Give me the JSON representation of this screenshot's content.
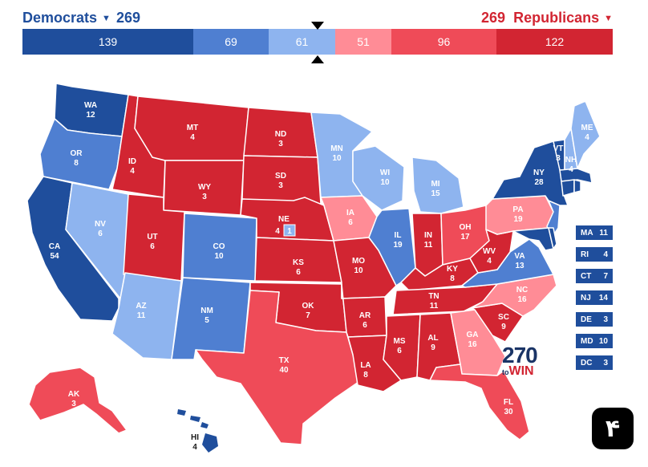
{
  "header": {
    "dem_label": "Democrats",
    "dem_total": "269",
    "rep_label": "Republicans",
    "rep_total": "269",
    "dropdown_icon": "chevron-down-icon"
  },
  "bar": {
    "segments": [
      {
        "value": "139",
        "color": "#1f4e9c"
      },
      {
        "value": "69",
        "color": "#4f7fd1"
      },
      {
        "value": "61",
        "color": "#8eb4ef"
      },
      {
        "value": "51",
        "color": "#ff8c96"
      },
      {
        "value": "96",
        "color": "#ef4b58"
      },
      {
        "value": "122",
        "color": "#d22532"
      }
    ]
  },
  "colors": {
    "solid_d": "#1f4e9c",
    "likely_d": "#4f7fd1",
    "lean_d": "#8eb4ef",
    "lean_r": "#ff8c96",
    "likely_r": "#ef4b58",
    "solid_r": "#d22532"
  },
  "states": {
    "WA": {
      "abbr": "WA",
      "ev": "12"
    },
    "OR": {
      "abbr": "OR",
      "ev": "8"
    },
    "CA": {
      "abbr": "CA",
      "ev": "54"
    },
    "NV": {
      "abbr": "NV",
      "ev": "6"
    },
    "ID": {
      "abbr": "ID",
      "ev": "4"
    },
    "MT": {
      "abbr": "MT",
      "ev": "4"
    },
    "WY": {
      "abbr": "WY",
      "ev": "3"
    },
    "UT": {
      "abbr": "UT",
      "ev": "6"
    },
    "AZ": {
      "abbr": "AZ",
      "ev": "11"
    },
    "CO": {
      "abbr": "CO",
      "ev": "10"
    },
    "NM": {
      "abbr": "NM",
      "ev": "5"
    },
    "ND": {
      "abbr": "ND",
      "ev": "3"
    },
    "SD": {
      "abbr": "SD",
      "ev": "3"
    },
    "NE": {
      "abbr": "NE",
      "ev": "4",
      "cd": "1"
    },
    "KS": {
      "abbr": "KS",
      "ev": "6"
    },
    "OK": {
      "abbr": "OK",
      "ev": "7"
    },
    "TX": {
      "abbr": "TX",
      "ev": "40"
    },
    "MN": {
      "abbr": "MN",
      "ev": "10"
    },
    "IA": {
      "abbr": "IA",
      "ev": "6"
    },
    "MO": {
      "abbr": "MO",
      "ev": "10"
    },
    "AR": {
      "abbr": "AR",
      "ev": "6"
    },
    "LA": {
      "abbr": "LA",
      "ev": "8"
    },
    "WI": {
      "abbr": "WI",
      "ev": "10"
    },
    "IL": {
      "abbr": "IL",
      "ev": "19"
    },
    "MI": {
      "abbr": "MI",
      "ev": "15"
    },
    "IN": {
      "abbr": "IN",
      "ev": "11"
    },
    "OH": {
      "abbr": "OH",
      "ev": "17"
    },
    "KY": {
      "abbr": "KY",
      "ev": "8"
    },
    "TN": {
      "abbr": "TN",
      "ev": "11"
    },
    "MS": {
      "abbr": "MS",
      "ev": "6"
    },
    "AL": {
      "abbr": "AL",
      "ev": "9"
    },
    "GA": {
      "abbr": "GA",
      "ev": "16"
    },
    "FL": {
      "abbr": "FL",
      "ev": "30"
    },
    "SC": {
      "abbr": "SC",
      "ev": "9"
    },
    "NC": {
      "abbr": "NC",
      "ev": "16"
    },
    "VA": {
      "abbr": "VA",
      "ev": "13"
    },
    "WV": {
      "abbr": "WV",
      "ev": "4"
    },
    "PA": {
      "abbr": "PA",
      "ev": "19"
    },
    "NY": {
      "abbr": "NY",
      "ev": "28"
    },
    "VT": {
      "abbr": "VT",
      "ev": "3"
    },
    "NH": {
      "abbr": "NH",
      "ev": "4"
    },
    "ME": {
      "abbr": "ME",
      "ev": "4"
    },
    "AK": {
      "abbr": "AK",
      "ev": "3"
    },
    "HI": {
      "abbr": "HI",
      "ev": "4"
    }
  },
  "small_states": [
    {
      "abbr": "MA",
      "ev": "11"
    },
    {
      "abbr": "RI",
      "ev": "4"
    },
    {
      "abbr": "CT",
      "ev": "7"
    },
    {
      "abbr": "NJ",
      "ev": "14"
    },
    {
      "abbr": "DE",
      "ev": "3"
    },
    {
      "abbr": "MD",
      "ev": "10"
    },
    {
      "abbr": "DC",
      "ev": "3"
    }
  ],
  "logo": {
    "number": "270",
    "to": "to",
    "win": "WIN"
  },
  "badge": "۴"
}
